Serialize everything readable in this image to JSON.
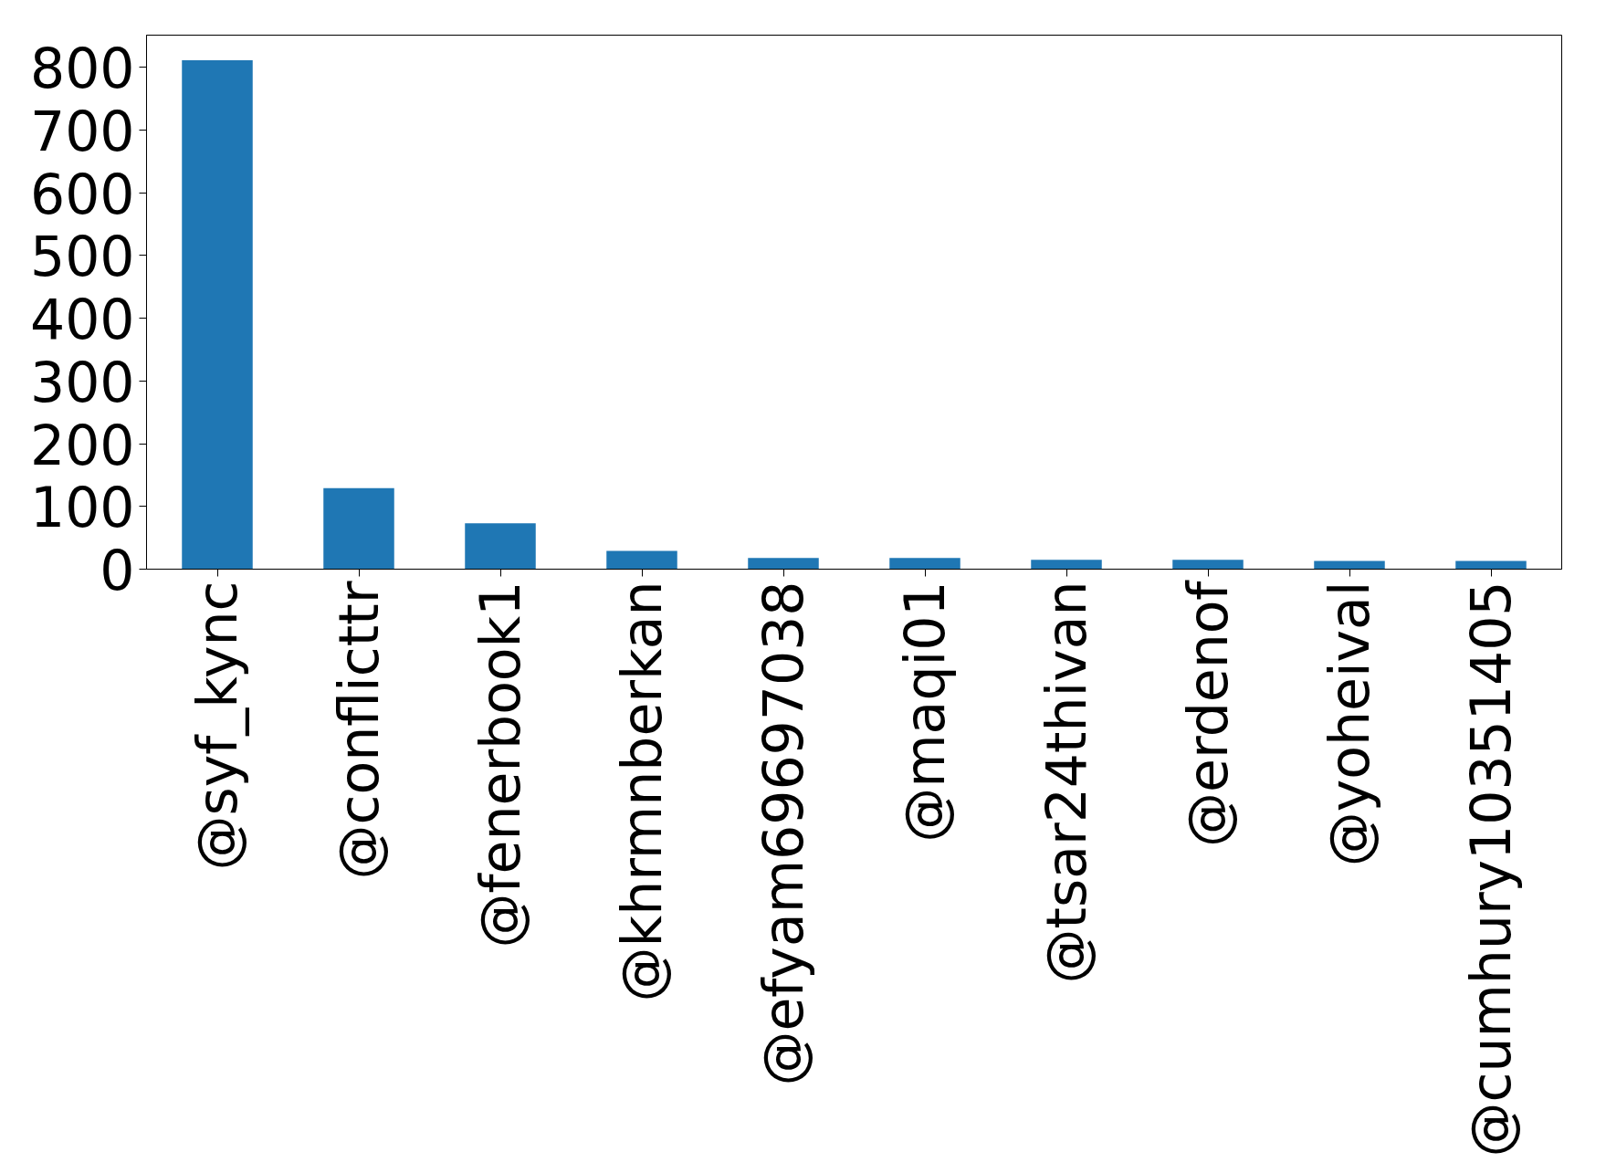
{
  "chart_data": {
    "type": "bar",
    "categories": [
      "@syf_kync",
      "@conflicttr",
      "@fenerbook1",
      "@khrmnberkan",
      "@efyam69697038",
      "@maqi01",
      "@tsar24thivan",
      "@erdenof",
      "@yoheival",
      "@cumhury10351405"
    ],
    "values": [
      811,
      129,
      73,
      29,
      18,
      18,
      15,
      15,
      13,
      13
    ],
    "color": "#1f77b4",
    "ylim": [
      0,
      851
    ],
    "yticks": [
      0,
      100,
      200,
      300,
      400,
      500,
      600,
      700,
      800
    ],
    "grid": false
  }
}
